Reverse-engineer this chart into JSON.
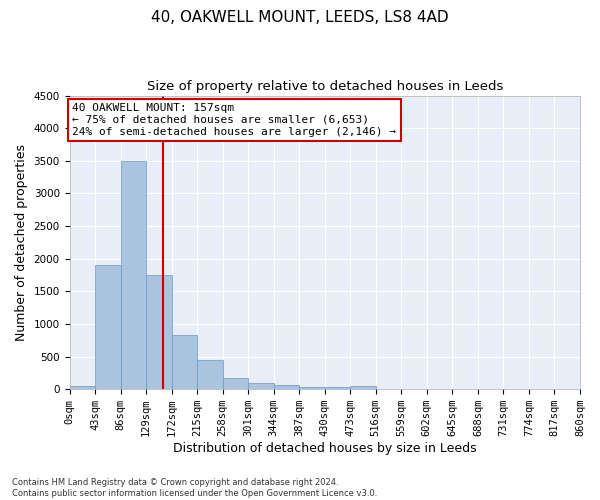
{
  "title_line1": "40, OAKWELL MOUNT, LEEDS, LS8 4AD",
  "title_line2": "Size of property relative to detached houses in Leeds",
  "xlabel": "Distribution of detached houses by size in Leeds",
  "ylabel": "Number of detached properties",
  "bar_edges": [
    0,
    43,
    86,
    129,
    172,
    215,
    258,
    301,
    344,
    387,
    430,
    473,
    516,
    559,
    602,
    645,
    688,
    731,
    774,
    817,
    860
  ],
  "bar_heights": [
    50,
    1900,
    3500,
    1750,
    830,
    450,
    175,
    100,
    65,
    40,
    40,
    55,
    0,
    0,
    0,
    0,
    0,
    0,
    0,
    0
  ],
  "bar_color": "#aac4e0",
  "bar_edgecolor": "#6699cc",
  "bg_color": "#e8eef7",
  "grid_color": "#ffffff",
  "vline_x": 157,
  "vline_color": "#cc0000",
  "annotation_text": "40 OAKWELL MOUNT: 157sqm\n← 75% of detached houses are smaller (6,653)\n24% of semi-detached houses are larger (2,146) →",
  "annotation_box_color": "#ffffff",
  "annotation_box_edgecolor": "#cc0000",
  "ylim": [
    0,
    4500
  ],
  "xlim": [
    0,
    860
  ],
  "footnote": "Contains HM Land Registry data © Crown copyright and database right 2024.\nContains public sector information licensed under the Open Government Licence v3.0.",
  "tick_labels": [
    "0sqm",
    "43sqm",
    "86sqm",
    "129sqm",
    "172sqm",
    "215sqm",
    "258sqm",
    "301sqm",
    "344sqm",
    "387sqm",
    "430sqm",
    "473sqm",
    "516sqm",
    "559sqm",
    "602sqm",
    "645sqm",
    "688sqm",
    "731sqm",
    "774sqm",
    "817sqm",
    "860sqm"
  ],
  "title_fontsize": 11,
  "subtitle_fontsize": 9.5,
  "axis_label_fontsize": 9,
  "tick_fontsize": 7.5,
  "footnote_fontsize": 6,
  "annotation_fontsize": 8
}
